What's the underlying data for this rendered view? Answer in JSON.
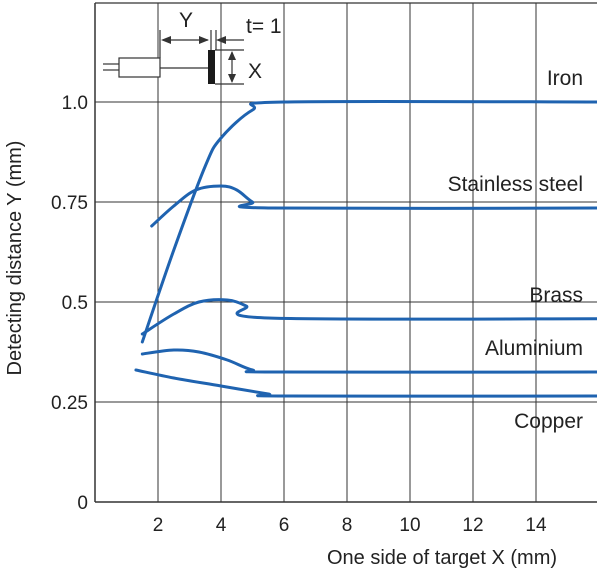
{
  "chart_data": {
    "type": "line",
    "title": "",
    "xlabel": "One side of target X (mm)",
    "ylabel": "Detecting distance Y (mm)",
    "xlim": [
      0,
      16
    ],
    "ylim": [
      0,
      1.25
    ],
    "x_ticks": [
      {
        "value": 2,
        "label": "2"
      },
      {
        "value": 4,
        "label": "4"
      },
      {
        "value": 6,
        "label": "6"
      },
      {
        "value": 8,
        "label": "8"
      },
      {
        "value": 10,
        "label": "10"
      },
      {
        "value": 12,
        "label": "12"
      },
      {
        "value": 14,
        "label": "14"
      }
    ],
    "y_ticks": [
      {
        "value": 0,
        "label": "0"
      },
      {
        "value": 0.25,
        "label": "0.25"
      },
      {
        "value": 0.5,
        "label": "0.5"
      },
      {
        "value": 0.75,
        "label": "0.75"
      },
      {
        "value": 1.0,
        "label": "1.0"
      }
    ],
    "grid": true,
    "line_color": "#1f63b0",
    "series": [
      {
        "name": "Iron",
        "points": [
          [
            1.5,
            0.4
          ],
          [
            2.5,
            0.63
          ],
          [
            3.5,
            0.84
          ],
          [
            4.0,
            0.91
          ],
          [
            5.0,
            0.98
          ],
          [
            6.0,
            1.0
          ],
          [
            16.0,
            1.0
          ]
        ]
      },
      {
        "name": "Stainless steel",
        "points": [
          [
            1.8,
            0.69
          ],
          [
            2.5,
            0.74
          ],
          [
            3.2,
            0.78
          ],
          [
            4.0,
            0.79
          ],
          [
            4.5,
            0.78
          ],
          [
            5.0,
            0.75
          ],
          [
            5.5,
            0.735
          ],
          [
            16.0,
            0.735
          ]
        ]
      },
      {
        "name": "Brass",
        "points": [
          [
            1.5,
            0.42
          ],
          [
            2.5,
            0.47
          ],
          [
            3.3,
            0.5
          ],
          [
            4.2,
            0.505
          ],
          [
            4.8,
            0.49
          ],
          [
            5.5,
            0.46
          ],
          [
            16.0,
            0.458
          ]
        ]
      },
      {
        "name": "Aluminium",
        "points": [
          [
            1.5,
            0.37
          ],
          [
            2.5,
            0.38
          ],
          [
            3.3,
            0.375
          ],
          [
            4.2,
            0.355
          ],
          [
            5.0,
            0.33
          ],
          [
            5.8,
            0.325
          ],
          [
            16.0,
            0.325
          ]
        ]
      },
      {
        "name": "Copper",
        "points": [
          [
            1.3,
            0.33
          ],
          [
            2.5,
            0.31
          ],
          [
            4.0,
            0.29
          ],
          [
            5.5,
            0.27
          ],
          [
            6.0,
            0.265
          ],
          [
            16.0,
            0.265
          ]
        ]
      }
    ]
  },
  "diagram": {
    "y_label": "Y",
    "x_label": "X",
    "t_label": "t= 1"
  }
}
